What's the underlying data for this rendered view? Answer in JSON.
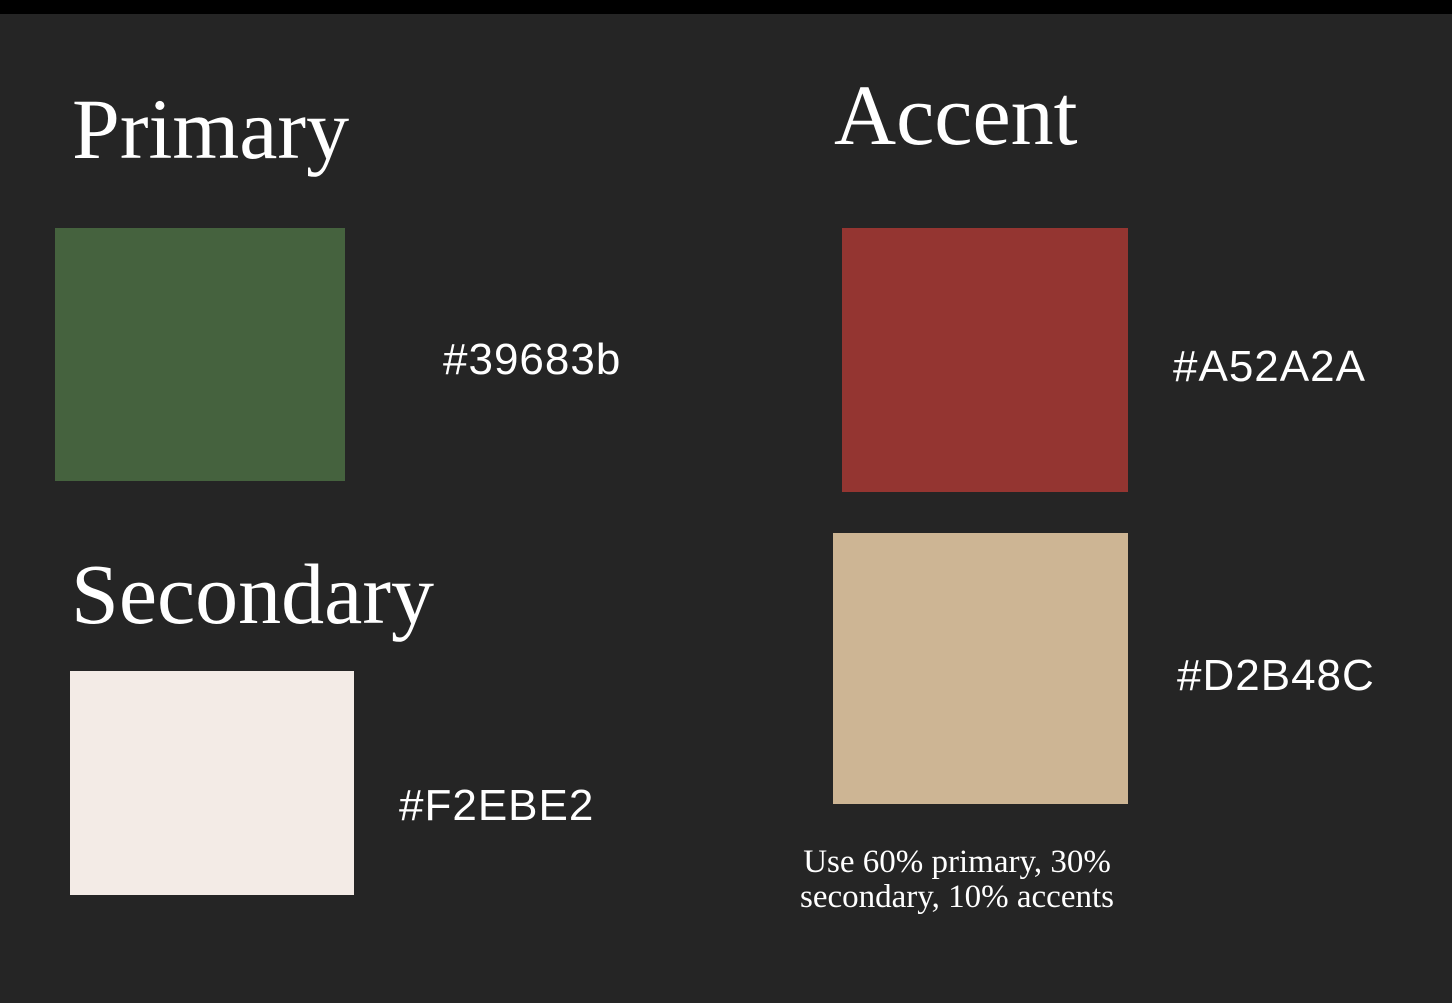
{
  "primary": {
    "heading": "Primary",
    "hex_label": "#39683b",
    "swatch_color": "#45623E"
  },
  "secondary": {
    "heading": "Secondary",
    "hex_label": "#F2EBE2",
    "swatch_color": "#F3EBE6"
  },
  "accent": {
    "heading": "Accent",
    "items": [
      {
        "hex_label": "#A52A2A",
        "swatch_color": "#943531"
      },
      {
        "hex_label": "#D2B48C",
        "swatch_color": "#CDB594"
      }
    ]
  },
  "usage_note": {
    "line1": "Use 60% primary, 30%",
    "line2": "secondary, 10% accents"
  }
}
